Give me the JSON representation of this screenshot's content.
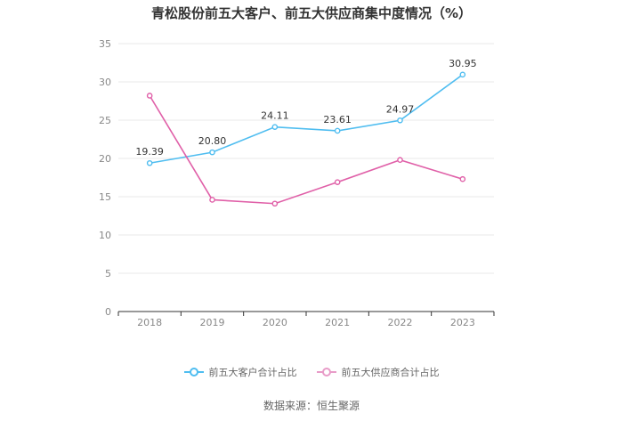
{
  "chart_data": {
    "type": "line",
    "title": "青松股份前五大客户、前五大供应商集中度情况（%）",
    "categories": [
      "2018",
      "2019",
      "2020",
      "2021",
      "2022",
      "2023"
    ],
    "y_ticks": [
      "0",
      "5",
      "10",
      "15",
      "20",
      "25",
      "30",
      "35"
    ],
    "ylim": [
      0,
      35
    ],
    "grid": true,
    "legend_position": "bottom",
    "series": [
      {
        "name": "前五大客户合计占比",
        "color": "#4fbdf0",
        "values": [
          19.39,
          20.8,
          24.11,
          23.61,
          24.97,
          30.95
        ],
        "labels": [
          "19.39",
          "20.80",
          "24.11",
          "23.61",
          "24.97",
          "30.95"
        ],
        "show_labels": true
      },
      {
        "name": "前五大供应商合计占比",
        "color": "#e060a8",
        "values": [
          28.2,
          14.6,
          14.1,
          16.9,
          19.8,
          17.3
        ],
        "show_labels": false
      }
    ]
  },
  "source": "数据来源：恒生聚源"
}
